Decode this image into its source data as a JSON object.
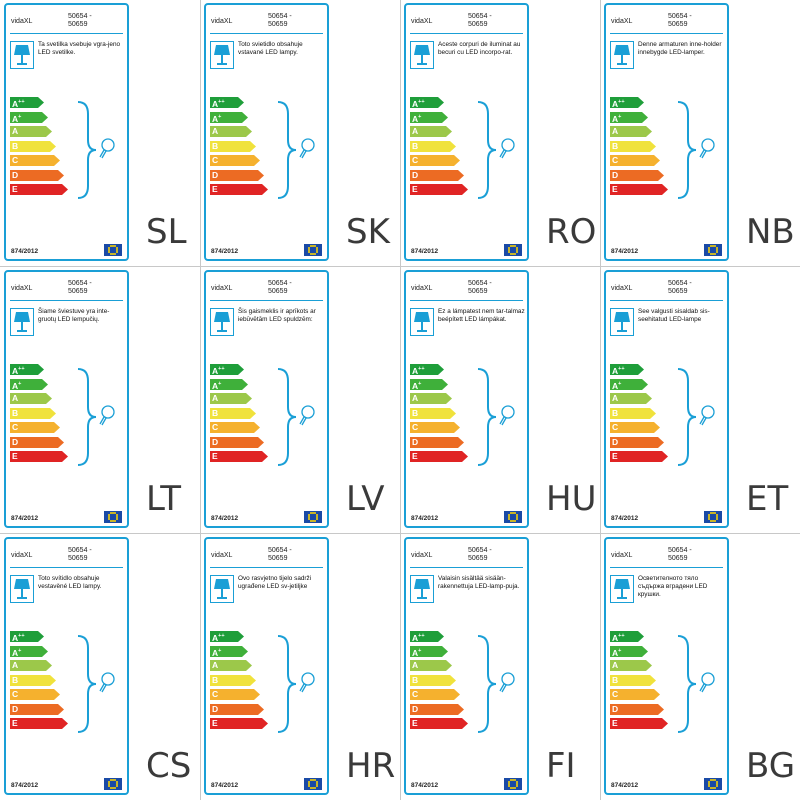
{
  "brand": "vidaXL",
  "model_line1": "50654 -",
  "model_line2": "50659",
  "regulation": "874/2012",
  "classes": [
    "A++",
    "A+",
    "A",
    "B",
    "C",
    "D",
    "E"
  ],
  "class_colors": [
    "#1f9e3a",
    "#3fb03a",
    "#9cc84a",
    "#f0e23c",
    "#f5b12e",
    "#ec6b23",
    "#e02424"
  ],
  "labels": [
    {
      "code": "SL",
      "text": "Ta svetilka vsebuje vgra-jeno LED svetilke."
    },
    {
      "code": "SK",
      "text": "Toto svietidlo obsahuje vstavané LED lampy."
    },
    {
      "code": "RO",
      "text": "Aceste corpuri de iluminat au becuri cu LED incorpo-rat."
    },
    {
      "code": "NB",
      "text": "Denne armaturen inne-holder innebygde LED-lamper."
    },
    {
      "code": "LT",
      "text": "Šiame šviestuve yra inte-gruotų LED lempučių."
    },
    {
      "code": "LV",
      "text": "Šis gaismeklis ir aprīkots ar iebūvētām LED spuldzēm:"
    },
    {
      "code": "HU",
      "text": "Ez a lámpatest nem tar-talmaz beépített LED lámpákat."
    },
    {
      "code": "ET",
      "text": "See valgusti sisaldab sis-seehitatud LED-lampe"
    },
    {
      "code": "CS",
      "text": "Toto svítidlo obsahuje vestavěné LED lampy."
    },
    {
      "code": "HR",
      "text": "Ovo rasvjetno tijelo sadrži ugrađene LED sv-jetiljke"
    },
    {
      "code": "FI",
      "text": "Valaisin sisältää sisään-rakennettuja LED-lamp-puja."
    },
    {
      "code": "BG",
      "text": "Осветителното тяло съдържа вградени LED крушки."
    }
  ]
}
